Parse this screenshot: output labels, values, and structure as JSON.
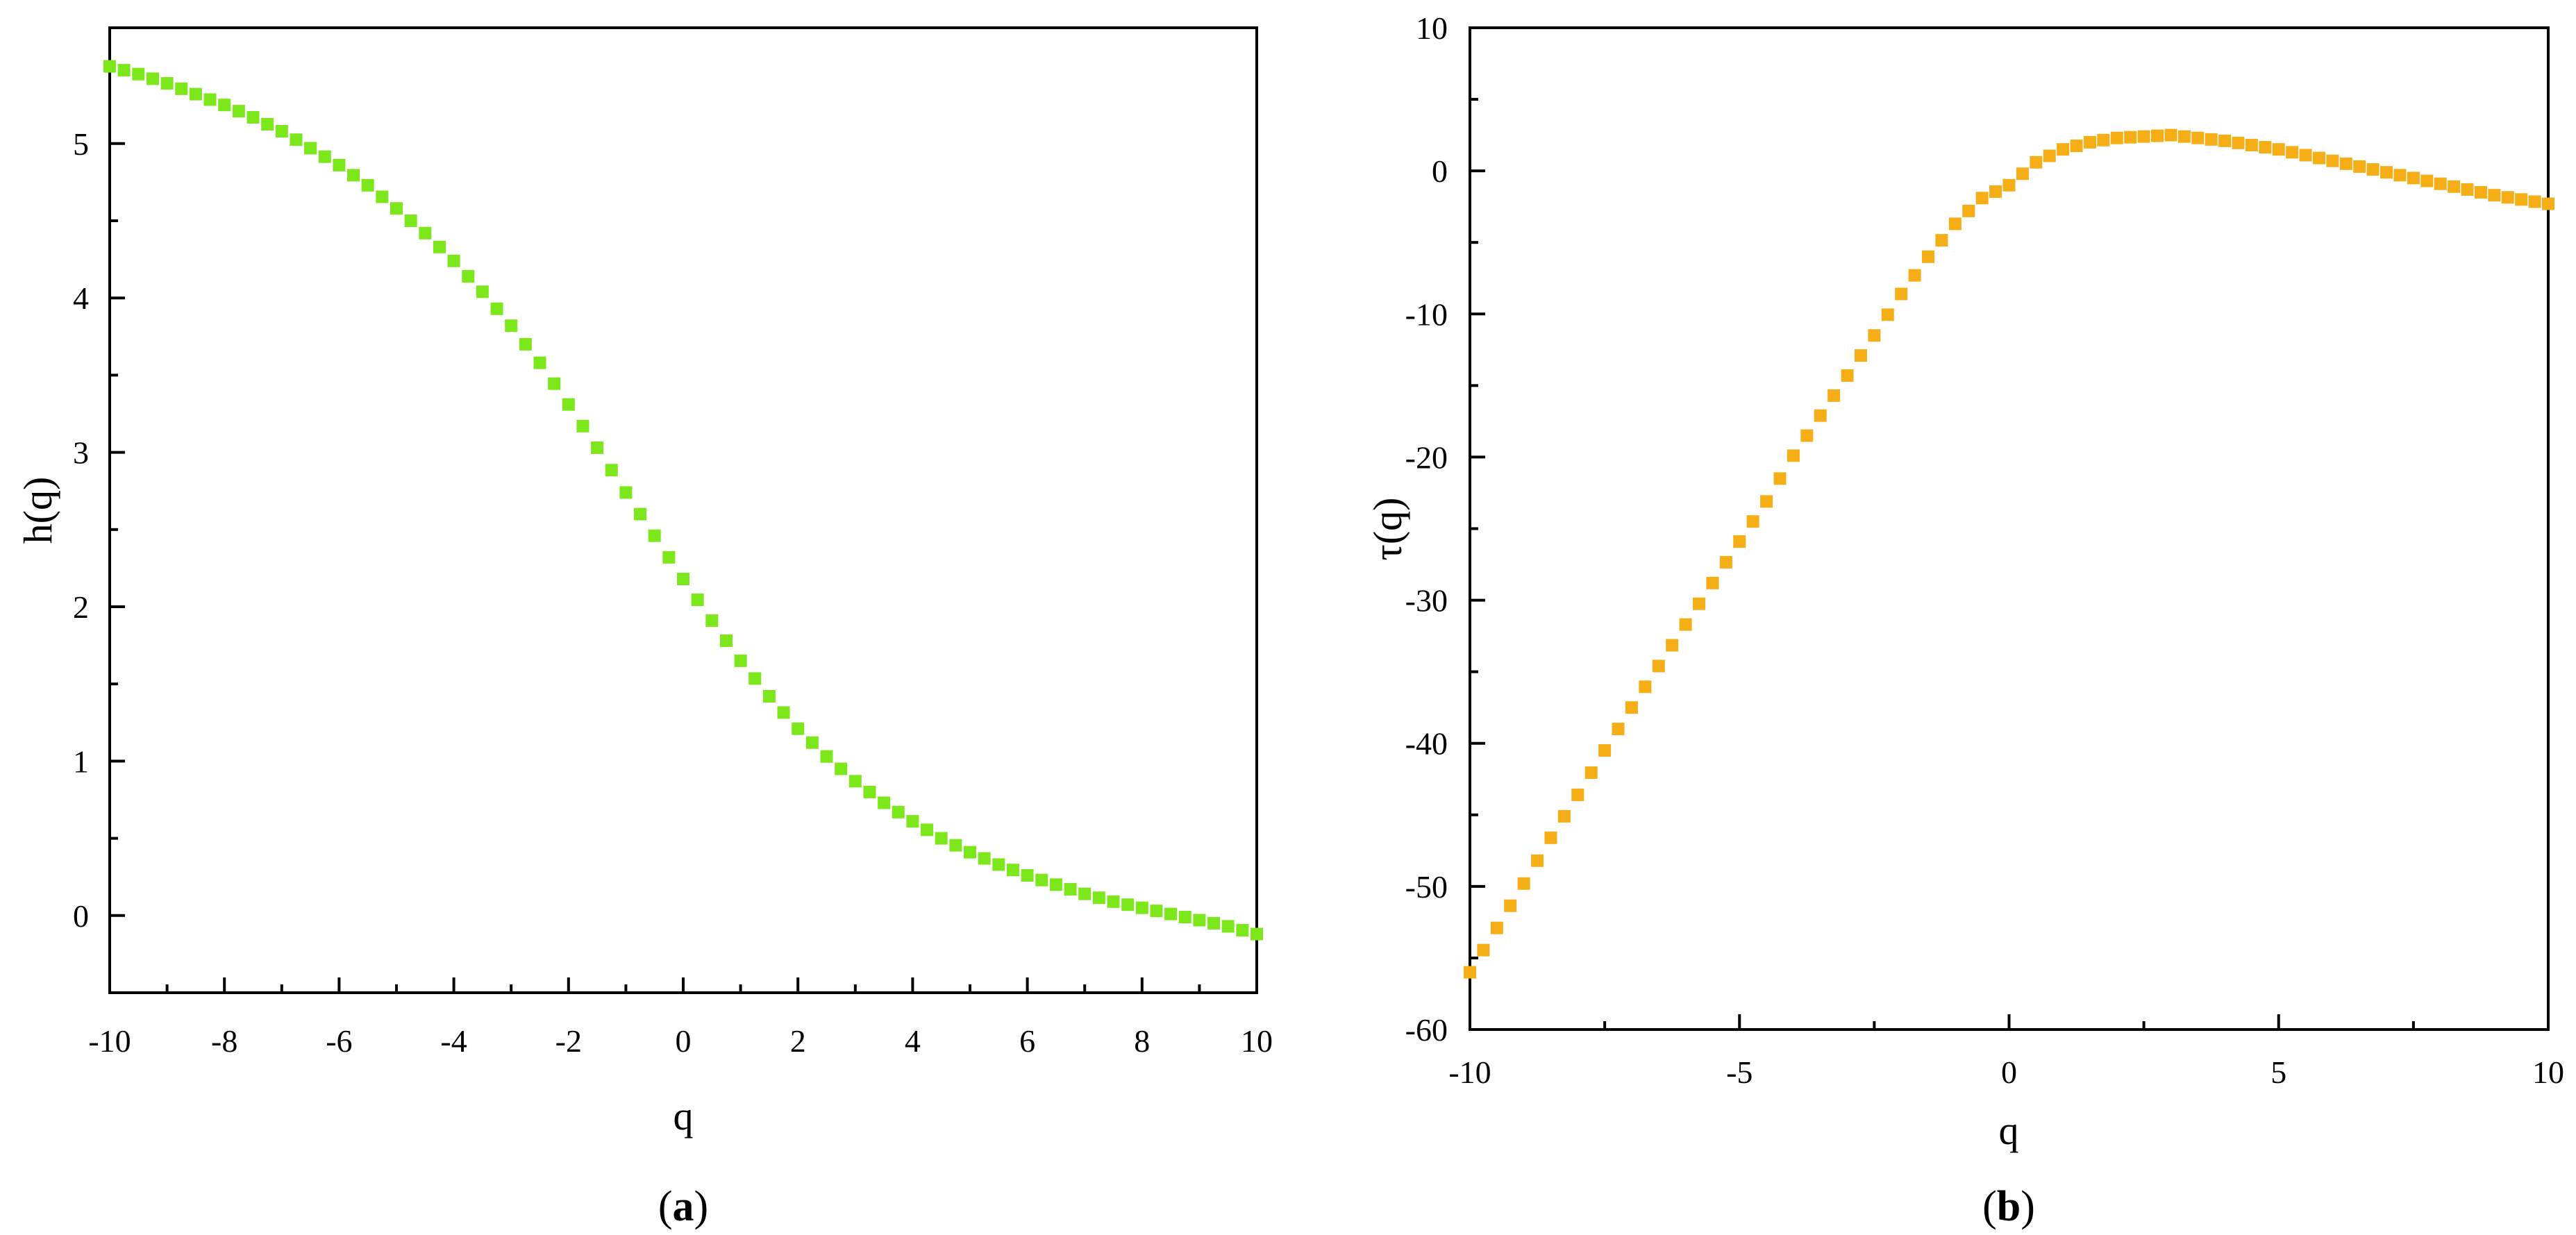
{
  "figure": {
    "panels": [
      {
        "caption_open": "(",
        "caption_letter": "a",
        "caption_close": ")"
      },
      {
        "caption_open": "(",
        "caption_letter": "b",
        "caption_close": ")"
      }
    ]
  },
  "chart_data": [
    {
      "type": "scatter",
      "title": "",
      "xlabel": "q",
      "ylabel": "h(q)",
      "xlim": [
        -10,
        10
      ],
      "ylim": [
        -0.5,
        5.75
      ],
      "xticks": [
        -10,
        -8,
        -6,
        -4,
        -2,
        0,
        2,
        4,
        6,
        8,
        10
      ],
      "xtick_labels": [
        "-10",
        "-8",
        "-6",
        "-4",
        "-2",
        "0",
        "2",
        "4",
        "6",
        "8",
        "10"
      ],
      "yticks": [
        0,
        1,
        2,
        3,
        4,
        5
      ],
      "ytick_labels": [
        "0",
        "1",
        "2",
        "3",
        "4",
        "5"
      ],
      "grid": false,
      "marker": "square",
      "color": "#7CE81C",
      "series": [
        {
          "x": [
            -10,
            -9.5,
            -9,
            -8.5,
            -8,
            -7.5,
            -7,
            -6.5,
            -6,
            -5.5,
            -5,
            -4.5,
            -4,
            -3.5,
            -3,
            -2.5,
            -2,
            -1.5,
            -1,
            -0.5,
            0,
            0.5,
            1,
            1.5,
            2,
            2.5,
            3,
            3.5,
            4,
            4.5,
            5,
            5.5,
            6,
            6.5,
            7,
            7.5,
            8,
            8.5,
            9,
            9.5,
            10
          ],
          "y": [
            5.5,
            5.45,
            5.39,
            5.32,
            5.25,
            5.17,
            5.08,
            4.97,
            4.86,
            4.73,
            4.58,
            4.42,
            4.24,
            4.04,
            3.82,
            3.58,
            3.31,
            3.03,
            2.74,
            2.46,
            2.18,
            1.91,
            1.65,
            1.42,
            1.21,
            1.03,
            0.87,
            0.73,
            0.61,
            0.5,
            0.41,
            0.33,
            0.26,
            0.2,
            0.14,
            0.09,
            0.05,
            0.01,
            -0.03,
            -0.07,
            -0.12
          ]
        }
      ]
    },
    {
      "type": "scatter",
      "title": "",
      "xlabel": "q",
      "ylabel": "τ(q)",
      "xlim": [
        -10,
        10
      ],
      "ylim": [
        -60,
        10
      ],
      "xticks": [
        -10,
        -5,
        0,
        5,
        10
      ],
      "xtick_labels": [
        "-10",
        "-5",
        "0",
        "5",
        "10"
      ],
      "yticks": [
        10,
        0,
        -10,
        -20,
        -30,
        -40,
        -50,
        -60
      ],
      "ytick_labels": [
        "10",
        "0",
        "-10",
        "-20",
        "-30",
        "-40",
        "-50",
        "-60"
      ],
      "grid": false,
      "marker": "square",
      "color": "#F6AE17",
      "series": [
        {
          "x": [
            -10,
            -9.5,
            -9,
            -8.5,
            -8,
            -7.5,
            -7,
            -6.5,
            -6,
            -5.5,
            -5,
            -4.5,
            -4,
            -3.5,
            -3,
            -2.5,
            -2,
            -1.5,
            -1,
            -0.5,
            0,
            0.5,
            1,
            1.5,
            2,
            2.5,
            3,
            3.5,
            4,
            4.5,
            5,
            5.5,
            6,
            6.5,
            7,
            7.5,
            8,
            8.5,
            9,
            9.5,
            10
          ],
          "y": [
            -56.0,
            -52.9,
            -49.8,
            -46.6,
            -43.6,
            -40.5,
            -37.5,
            -34.6,
            -31.7,
            -28.8,
            -25.9,
            -23.1,
            -19.9,
            -17.1,
            -14.3,
            -11.5,
            -8.6,
            -6.0,
            -3.7,
            -1.9,
            -1.0,
            0.6,
            1.5,
            2.0,
            2.3,
            2.4,
            2.5,
            2.3,
            2.1,
            1.8,
            1.5,
            1.1,
            0.7,
            0.3,
            -0.1,
            -0.5,
            -0.9,
            -1.3,
            -1.7,
            -2.0,
            -2.3
          ]
        }
      ]
    }
  ]
}
